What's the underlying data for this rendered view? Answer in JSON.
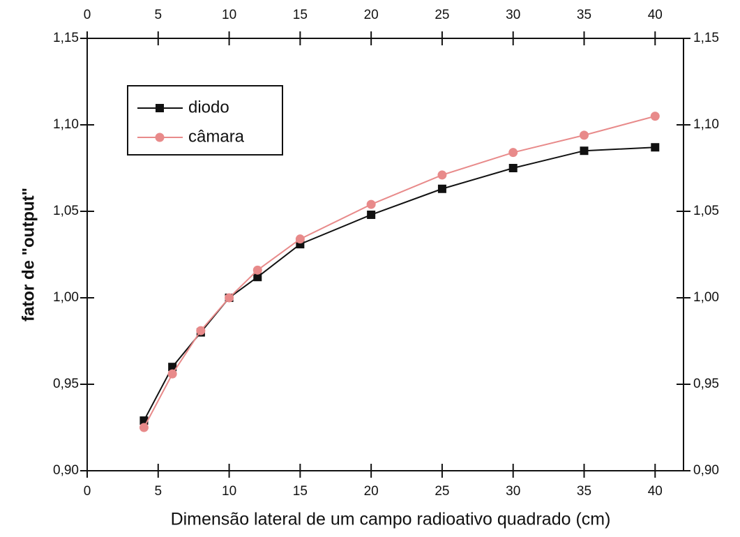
{
  "chart_data": {
    "type": "line",
    "xlabel": "Dimensão lateral de um campo radioativo quadrado (cm)",
    "ylabel": "fator de \"output\"",
    "x": [
      4,
      6,
      8,
      10,
      12,
      15,
      20,
      25,
      30,
      35,
      40
    ],
    "series": [
      {
        "name": "diodo",
        "color": "#111111",
        "marker": "square",
        "values": [
          0.929,
          0.96,
          0.98,
          1.0,
          1.012,
          1.031,
          1.048,
          1.063,
          1.075,
          1.085,
          1.087
        ]
      },
      {
        "name": "câmara",
        "color": "#e88a8a",
        "marker": "circle",
        "values": [
          0.925,
          0.956,
          0.981,
          1.0,
          1.016,
          1.034,
          1.054,
          1.071,
          1.084,
          1.094,
          1.105
        ]
      }
    ],
    "xlim": [
      0,
      42
    ],
    "xticks": [
      0,
      5,
      10,
      15,
      20,
      25,
      30,
      35,
      40
    ],
    "ylim": [
      0.9,
      1.15
    ],
    "yticks": [
      {
        "value": 0.9,
        "label": "0,90"
      },
      {
        "value": 0.95,
        "label": "0,95"
      },
      {
        "value": 1.0,
        "label": "1,00"
      },
      {
        "value": 1.05,
        "label": "1,05"
      },
      {
        "value": 1.1,
        "label": "1,10"
      },
      {
        "value": 1.15,
        "label": "1,15"
      }
    ],
    "legend": "upper left",
    "grid": false
  }
}
